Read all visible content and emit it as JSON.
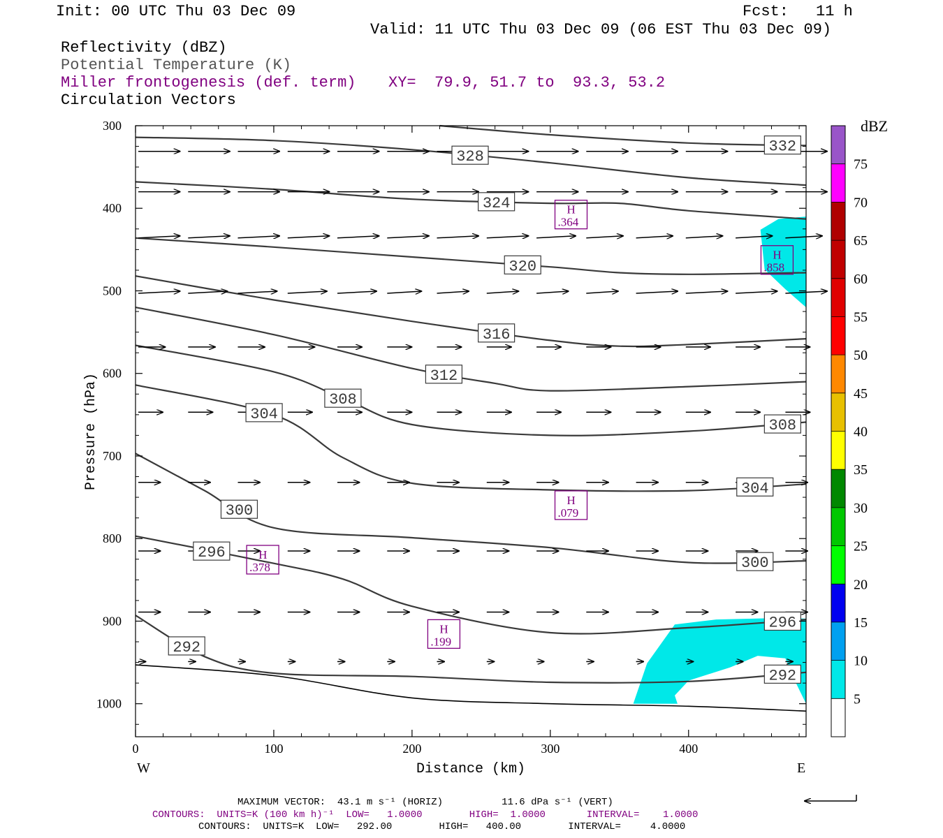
{
  "header": {
    "init": "Init: 00 UTC Thu 03 Dec 09",
    "fcst_label": "Fcst:",
    "fcst_value": "11 h",
    "valid": "Valid: 11 UTC Thu 03 Dec 09 (06 EST Thu 03 Dec 09)",
    "fields": [
      {
        "text": "Reflectivity (dBZ)",
        "color": "#000000"
      },
      {
        "text": "Potential Temperature (K)",
        "color": "#555555"
      },
      {
        "text": "Miller frontogenesis (def. term)",
        "color": "#800080"
      },
      {
        "text": "Circulation Vectors",
        "color": "#000000"
      }
    ],
    "xy": "XY=  79.9, 51.7 to  93.3, 53.2"
  },
  "footer": {
    "max_vector": "MAXIMUM VECTOR:  43.1 m s⁻¹ (HORIZ)          11.6 dPa s⁻¹ (VERT)",
    "contours_fg": "CONTOURS:  UNITS=K (100 km h)⁻¹  LOW=   1.0000        HIGH=  1.0000       INTERVAL=    1.0000",
    "contours_theta": "CONTOURS:  UNITS=K  LOW=   292.00        HIGH=   400.00        INTERVAL=     4.0000"
  },
  "chart_data": {
    "type": "cross-section",
    "xlabel": "Distance (km)",
    "ylabel": "Pressure (hPa)",
    "xlim": [
      0,
      485
    ],
    "ylim": [
      1040,
      300
    ],
    "x_ticks": [
      0,
      100,
      200,
      300,
      400
    ],
    "y_ticks": [
      300,
      400,
      500,
      600,
      700,
      800,
      900,
      1000
    ],
    "left_label": "W",
    "right_label": "E",
    "colorbar": {
      "unit": "dBZ",
      "levels": [
        5,
        10,
        15,
        20,
        25,
        30,
        35,
        40,
        45,
        50,
        55,
        60,
        65,
        70,
        75
      ],
      "colors": [
        "#00e8e8",
        "#00a0f0",
        "#0000f0",
        "#00ff00",
        "#00c800",
        "#008800",
        "#ffff00",
        "#e8c000",
        "#ff8800",
        "#ff0000",
        "#e00000",
        "#c00000",
        "#b00000",
        "#ff00ff",
        "#9955c9"
      ]
    },
    "theta_contours": [
      {
        "label": "332",
        "points": [
          [
            220,
            300
          ],
          [
            300,
            311
          ],
          [
            400,
            321
          ],
          [
            485,
            324
          ]
        ]
      },
      {
        "label": "328",
        "points": [
          [
            0,
            314
          ],
          [
            100,
            318
          ],
          [
            200,
            329
          ],
          [
            300,
            345
          ],
          [
            400,
            363
          ],
          [
            485,
            372
          ]
        ]
      },
      {
        "label": "324",
        "points": [
          [
            0,
            368
          ],
          [
            100,
            377
          ],
          [
            200,
            389
          ],
          [
            300,
            394
          ],
          [
            350,
            394
          ],
          [
            400,
            403
          ],
          [
            485,
            413
          ]
        ]
      },
      {
        "label": "320",
        "points": [
          [
            0,
            436
          ],
          [
            100,
            447
          ],
          [
            200,
            459
          ],
          [
            300,
            471
          ],
          [
            350,
            478
          ],
          [
            400,
            480
          ],
          [
            485,
            478
          ]
        ]
      },
      {
        "label": "316",
        "points": [
          [
            0,
            482
          ],
          [
            100,
            511
          ],
          [
            200,
            537
          ],
          [
            300,
            560
          ],
          [
            350,
            567
          ],
          [
            400,
            565
          ],
          [
            485,
            558
          ]
        ]
      },
      {
        "label": "312",
        "points": [
          [
            0,
            520
          ],
          [
            100,
            553
          ],
          [
            200,
            594
          ],
          [
            260,
            612
          ],
          [
            300,
            621
          ],
          [
            400,
            616
          ],
          [
            485,
            610
          ]
        ]
      },
      {
        "label": "308",
        "points": [
          [
            0,
            566
          ],
          [
            100,
            598
          ],
          [
            150,
            630
          ],
          [
            200,
            662
          ],
          [
            300,
            675
          ],
          [
            400,
            670
          ],
          [
            485,
            659
          ]
        ]
      },
      {
        "label": "304",
        "points": [
          [
            0,
            614
          ],
          [
            100,
            650
          ],
          [
            150,
            702
          ],
          [
            200,
            733
          ],
          [
            300,
            741
          ],
          [
            400,
            742
          ],
          [
            485,
            734
          ]
        ]
      },
      {
        "label": "300",
        "points": [
          [
            0,
            697
          ],
          [
            50,
            742
          ],
          [
            100,
            787
          ],
          [
            200,
            799
          ],
          [
            300,
            811
          ],
          [
            400,
            829
          ],
          [
            485,
            827
          ]
        ]
      },
      {
        "label": "296",
        "points": [
          [
            0,
            797
          ],
          [
            100,
            830
          ],
          [
            150,
            849
          ],
          [
            200,
            882
          ],
          [
            300,
            914
          ],
          [
            400,
            908
          ],
          [
            485,
            898
          ]
        ]
      },
      {
        "label": "292",
        "points": [
          [
            0,
            893
          ],
          [
            50,
            943
          ],
          [
            100,
            963
          ],
          [
            200,
            967
          ],
          [
            300,
            974
          ],
          [
            400,
            973
          ],
          [
            485,
            962
          ]
        ]
      }
    ],
    "ground_lines": [
      {
        "points": [
          [
            0,
            953
          ],
          [
            100,
            966
          ],
          [
            200,
            993
          ],
          [
            300,
            1000
          ],
          [
            400,
            1003
          ],
          [
            485,
            1009
          ]
        ]
      }
    ],
    "reflectivity_regions": [
      {
        "level": 5,
        "points": [
          [
            452,
            426
          ],
          [
            465,
            413
          ],
          [
            485,
            410
          ],
          [
            485,
            520
          ],
          [
            470,
            498
          ],
          [
            455,
            474
          ]
        ]
      },
      {
        "level": 5,
        "points": [
          [
            360,
            1000
          ],
          [
            370,
            951
          ],
          [
            390,
            904
          ],
          [
            420,
            898
          ],
          [
            470,
            896
          ],
          [
            485,
            897
          ],
          [
            485,
            1000
          ],
          [
            478,
            976
          ],
          [
            470,
            945
          ],
          [
            450,
            942
          ],
          [
            430,
            956
          ],
          [
            400,
            972
          ],
          [
            390,
            990
          ],
          [
            392,
            1000
          ]
        ]
      }
    ],
    "frontogenesis_highs": [
      {
        "x": 315,
        "p": 408,
        "label": "H",
        "value": ".364"
      },
      {
        "x": 464,
        "p": 463,
        "label": "H",
        "value": ".858"
      },
      {
        "x": 315,
        "p": 760,
        "label": "H",
        "value": ".079"
      },
      {
        "x": 92,
        "p": 826,
        "label": "H",
        "value": ".378"
      },
      {
        "x": 223,
        "p": 916,
        "label": "H",
        "value": ".199"
      }
    ],
    "vectors": [
      {
        "p": 331,
        "dp": 0,
        "x": [
          0,
          36,
          72,
          108,
          144,
          180,
          216,
          252,
          288,
          324,
          360,
          396,
          432,
          468
        ],
        "dx": [
          34,
          34,
          34,
          34,
          34,
          34,
          34,
          34,
          34,
          34,
          34,
          34,
          34,
          34
        ]
      },
      {
        "p": 380,
        "dp": 0,
        "x": [
          0,
          36,
          72,
          108,
          144,
          180,
          216,
          252,
          288,
          324,
          360,
          396,
          432,
          468
        ],
        "dx": [
          34,
          34,
          34,
          34,
          34,
          34,
          34,
          34,
          34,
          34,
          34,
          34,
          34,
          34
        ]
      },
      {
        "p": 436,
        "dp": -3,
        "x": [
          0,
          36,
          72,
          108,
          144,
          180,
          216,
          252,
          288,
          324,
          360,
          396,
          432,
          468
        ],
        "dx": [
          34,
          34,
          34,
          34,
          34,
          34,
          34,
          34,
          32,
          30,
          30,
          30,
          30,
          30
        ]
      },
      {
        "p": 503,
        "dp": -3,
        "x": [
          0,
          36,
          72,
          108,
          144,
          180,
          216,
          252,
          288,
          324,
          360,
          396,
          432,
          468
        ],
        "dx": [
          34,
          32,
          32,
          32,
          32,
          28,
          26,
          26,
          26,
          26,
          34,
          34,
          34,
          34
        ]
      },
      {
        "p": 568,
        "dp": 0,
        "x": [
          0,
          36,
          72,
          108,
          144,
          180,
          216,
          252,
          288,
          324,
          360,
          396,
          432,
          468
        ],
        "dx": [
          22,
          22,
          22,
          22,
          20,
          20,
          20,
          20,
          20,
          20,
          20,
          20,
          20,
          20
        ]
      },
      {
        "p": 647,
        "dp": 0,
        "x": [
          0,
          36,
          72,
          108,
          144,
          180,
          216,
          252,
          288,
          324,
          360,
          396,
          432,
          468
        ],
        "dx": [
          20,
          20,
          20,
          20,
          20,
          20,
          20,
          20,
          20,
          20,
          20,
          20,
          20,
          20
        ]
      },
      {
        "p": 732,
        "dp": 0,
        "x": [
          0,
          36,
          72,
          108,
          144,
          180,
          216,
          252,
          288,
          324,
          360,
          396,
          432,
          468
        ],
        "dx": [
          18,
          18,
          18,
          18,
          18,
          18,
          18,
          18,
          18,
          18,
          18,
          18,
          18,
          18
        ]
      },
      {
        "p": 815,
        "dp": 0,
        "x": [
          0,
          36,
          72,
          108,
          144,
          180,
          216,
          252,
          288,
          324,
          360,
          396,
          432,
          468
        ],
        "dx": [
          18,
          18,
          18,
          18,
          18,
          18,
          18,
          18,
          18,
          18,
          18,
          18,
          18,
          18
        ]
      },
      {
        "p": 889,
        "dp": 0,
        "x": [
          0,
          36,
          72,
          108,
          144,
          180,
          216,
          252,
          288,
          324,
          360,
          396,
          432,
          468
        ],
        "dx": [
          18,
          18,
          18,
          18,
          18,
          18,
          18,
          18,
          18,
          18,
          18,
          18,
          18,
          18
        ]
      },
      {
        "p": 949,
        "dp": 0,
        "x": [
          0,
          36,
          72,
          108,
          144,
          180,
          216,
          252,
          288,
          324,
          360,
          396,
          432,
          468
        ],
        "dx": [
          6,
          6,
          6,
          6,
          6,
          6,
          6,
          6,
          6,
          6,
          6,
          6,
          6,
          6
        ]
      }
    ],
    "circulation_scale": {
      "horiz": "43.1 m s⁻¹",
      "vert": "11.6 dPa s⁻¹"
    }
  }
}
